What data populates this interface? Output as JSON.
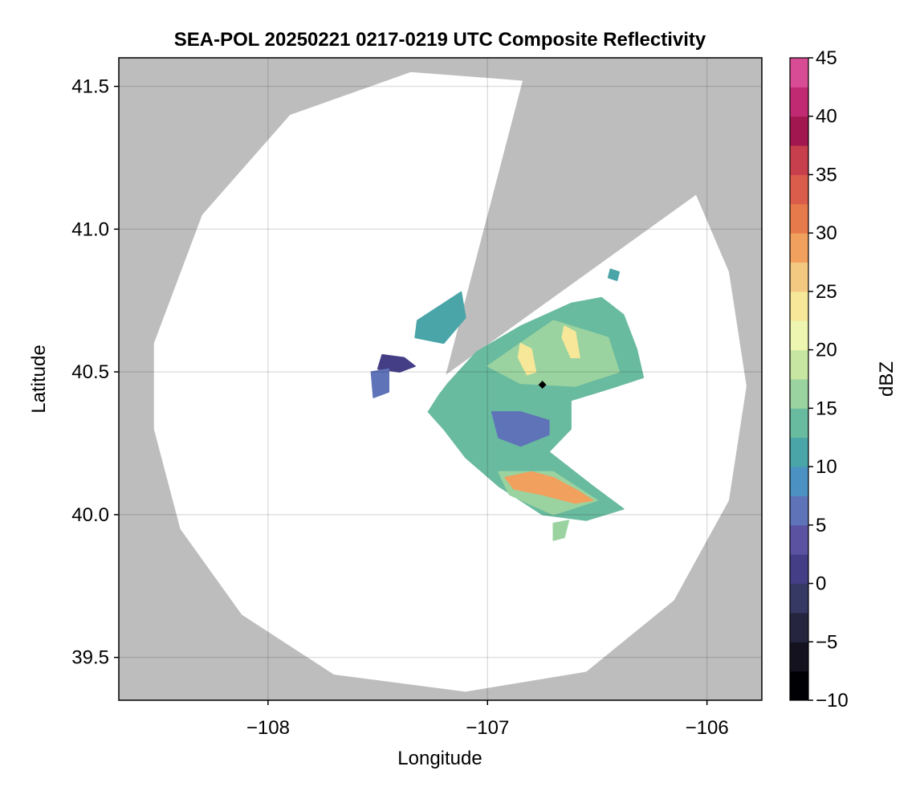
{
  "chart_data": {
    "type": "heatmap",
    "title": "SEA-POL 20250221 0217-0219 UTC Composite Reflectivity",
    "xlabel": "Longitude",
    "ylabel": "Latitude",
    "xlim": [
      -108.68,
      -105.75
    ],
    "ylim": [
      39.35,
      41.6
    ],
    "x_ticks": [
      {
        "value": -108,
        "label": "−108"
      },
      {
        "value": -107,
        "label": "−107"
      },
      {
        "value": -106,
        "label": "−106"
      }
    ],
    "y_ticks": [
      {
        "value": 39.5,
        "label": "39.5"
      },
      {
        "value": 40.0,
        "label": "40.0"
      },
      {
        "value": 40.5,
        "label": "40.5"
      },
      {
        "value": 41.0,
        "label": "41.0"
      },
      {
        "value": 41.5,
        "label": "41.5"
      }
    ],
    "grid": true,
    "background_color": "#bdbdbd",
    "radar": {
      "center": {
        "lon": -107.19,
        "lat": 40.49
      },
      "coverage_edge": [
        {
          "lon": -106.84,
          "lat": 41.52
        },
        {
          "lon": -107.35,
          "lat": 41.55
        },
        {
          "lon": -107.9,
          "lat": 41.4
        },
        {
          "lon": -108.3,
          "lat": 41.05
        },
        {
          "lon": -108.52,
          "lat": 40.6
        },
        {
          "lon": -108.52,
          "lat": 40.3
        },
        {
          "lon": -108.4,
          "lat": 39.95
        },
        {
          "lon": -108.12,
          "lat": 39.65
        },
        {
          "lon": -107.7,
          "lat": 39.44
        },
        {
          "lon": -107.1,
          "lat": 39.38
        },
        {
          "lon": -106.55,
          "lat": 39.45
        },
        {
          "lon": -106.15,
          "lat": 39.7
        },
        {
          "lon": -105.9,
          "lat": 40.05
        },
        {
          "lon": -105.82,
          "lat": 40.45
        },
        {
          "lon": -105.9,
          "lat": 40.85
        },
        {
          "lon": -106.05,
          "lat": 41.12
        }
      ]
    },
    "site_marker": {
      "lon": -106.75,
      "lat": 40.455
    },
    "echo_regions": [
      {
        "value": 13,
        "points": [
          [
            -107.18,
            40.46
          ],
          [
            -107.05,
            40.57
          ],
          [
            -106.85,
            40.66
          ],
          [
            -106.62,
            40.74
          ],
          [
            -106.48,
            40.76
          ],
          [
            -106.38,
            40.7
          ],
          [
            -106.32,
            40.58
          ],
          [
            -106.29,
            40.48
          ],
          [
            -106.45,
            40.44
          ],
          [
            -106.62,
            40.4
          ],
          [
            -106.62,
            40.3
          ],
          [
            -106.72,
            40.22
          ],
          [
            -106.52,
            40.1
          ],
          [
            -106.38,
            40.02
          ],
          [
            -106.55,
            39.98
          ],
          [
            -106.75,
            40.0
          ],
          [
            -106.95,
            40.1
          ],
          [
            -107.1,
            40.2
          ],
          [
            -107.2,
            40.3
          ],
          [
            -107.27,
            40.36
          ],
          [
            -107.22,
            40.42
          ]
        ]
      },
      {
        "value": 16,
        "points": [
          [
            -107.0,
            40.52
          ],
          [
            -106.7,
            40.68
          ],
          [
            -106.45,
            40.62
          ],
          [
            -106.4,
            40.5
          ],
          [
            -106.6,
            40.45
          ],
          [
            -106.85,
            40.46
          ]
        ]
      },
      {
        "value": 17,
        "points": [
          [
            -106.95,
            40.15
          ],
          [
            -106.7,
            40.15
          ],
          [
            -106.5,
            40.05
          ],
          [
            -106.7,
            40.0
          ],
          [
            -106.9,
            40.07
          ]
        ]
      },
      {
        "value": 5,
        "points": [
          [
            -106.98,
            40.36
          ],
          [
            -106.85,
            40.36
          ],
          [
            -106.72,
            40.33
          ],
          [
            -106.72,
            40.28
          ],
          [
            -106.85,
            40.24
          ],
          [
            -106.95,
            40.27
          ]
        ]
      },
      {
        "value": 28,
        "points": [
          [
            -106.92,
            40.13
          ],
          [
            -106.8,
            40.15
          ],
          [
            -106.7,
            40.13
          ],
          [
            -106.58,
            40.08
          ],
          [
            -106.52,
            40.05
          ],
          [
            -106.6,
            40.04
          ],
          [
            -106.75,
            40.07
          ],
          [
            -106.88,
            40.09
          ]
        ]
      },
      {
        "value": 24,
        "points": [
          [
            -106.85,
            40.6
          ],
          [
            -106.8,
            40.58
          ],
          [
            -106.78,
            40.5
          ],
          [
            -106.82,
            40.49
          ],
          [
            -106.86,
            40.55
          ]
        ]
      },
      {
        "value": 24,
        "points": [
          [
            -106.65,
            40.66
          ],
          [
            -106.6,
            40.64
          ],
          [
            -106.58,
            40.55
          ],
          [
            -106.62,
            40.55
          ],
          [
            -106.66,
            40.62
          ]
        ]
      },
      {
        "value": 10,
        "points": [
          [
            -107.12,
            40.78
          ],
          [
            -107.1,
            40.69
          ],
          [
            -107.2,
            40.6
          ],
          [
            -107.33,
            40.62
          ],
          [
            -107.32,
            40.68
          ],
          [
            -107.22,
            40.73
          ]
        ]
      },
      {
        "value": 2,
        "points": [
          [
            -107.48,
            40.56
          ],
          [
            -107.38,
            40.55
          ],
          [
            -107.33,
            40.52
          ],
          [
            -107.4,
            40.5
          ],
          [
            -107.5,
            40.51
          ]
        ]
      },
      {
        "value": 6,
        "points": [
          [
            -107.53,
            40.5
          ],
          [
            -107.45,
            40.51
          ],
          [
            -107.45,
            40.43
          ],
          [
            -107.52,
            40.41
          ]
        ]
      },
      {
        "value": 11,
        "points": [
          [
            -106.44,
            40.86
          ],
          [
            -106.4,
            40.85
          ],
          [
            -106.41,
            40.82
          ],
          [
            -106.45,
            40.83
          ]
        ]
      },
      {
        "value": 16,
        "points": [
          [
            -106.7,
            39.97
          ],
          [
            -106.63,
            39.98
          ],
          [
            -106.65,
            39.92
          ],
          [
            -106.7,
            39.91
          ]
        ]
      }
    ]
  },
  "colorbar": {
    "label": "dBZ",
    "min": -10,
    "max": 45,
    "step": 2.5,
    "tick_labels": [
      "−10",
      "−5",
      "0",
      "5",
      "10",
      "15",
      "20",
      "25",
      "30",
      "35",
      "40",
      "45"
    ],
    "colors": [
      "#000004",
      "#14121f",
      "#262540",
      "#363964",
      "#433e85",
      "#5b52a2",
      "#5f73b9",
      "#4b92c2",
      "#4aa5a8",
      "#69bb9f",
      "#9bd3a0",
      "#c7e6a2",
      "#eef5b0",
      "#f6e799",
      "#f3c982",
      "#f1a05d",
      "#e77a4b",
      "#da5c4b",
      "#c73e4d",
      "#a2174f",
      "#c02a72",
      "#d84c96",
      "#e58cc0",
      "#c89ad0",
      "#9a73b8",
      "#6c3a8f"
    ]
  }
}
